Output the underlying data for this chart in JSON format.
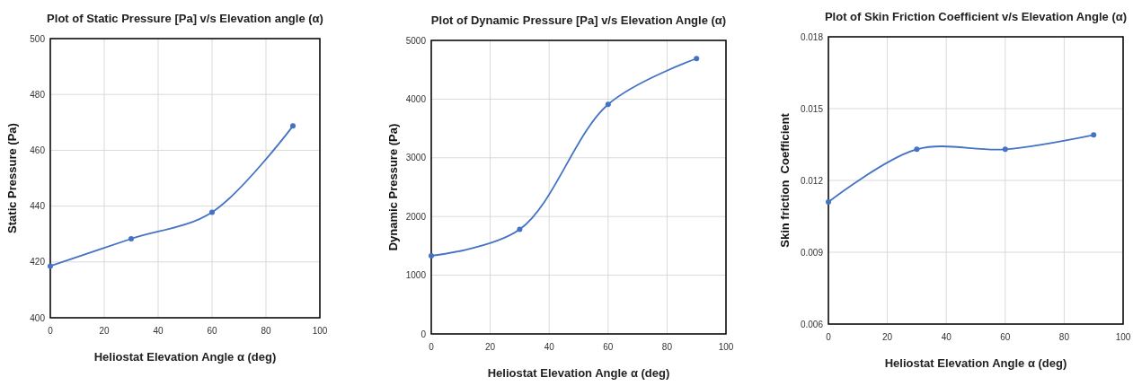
{
  "chart_data": [
    {
      "type": "line",
      "title": "Plot of Static Pressure [Pa] v/s Elevation angle (α)",
      "xlabel": "Heliostat Elevation Angle α (deg)",
      "ylabel": "Static Pressure (Pa)",
      "x": [
        0,
        30,
        60,
        90
      ],
      "series": [
        {
          "color": "#4472c4",
          "values": [
            418.5,
            428.3,
            437.8,
            468.7
          ]
        }
      ],
      "xlim": [
        0,
        100
      ],
      "xticks": [
        0,
        20,
        40,
        60,
        80,
        100
      ],
      "ylim": [
        400,
        500
      ],
      "yticks": [
        400,
        420,
        440,
        460,
        480,
        500
      ],
      "grid": true,
      "marker": "circle"
    },
    {
      "type": "line",
      "title": "Plot of Dynamic Pressure [Pa] v/s Elevation Angle (α)",
      "xlabel": "Heliostat Elevation Angle α (deg)",
      "ylabel": "Dynamic Pressure (Pa)",
      "x": [
        0,
        30,
        60,
        90
      ],
      "series": [
        {
          "color": "#4472c4",
          "values": [
            1330,
            1780,
            3910,
            4690
          ]
        }
      ],
      "xlim": [
        0,
        100
      ],
      "xticks": [
        0,
        20,
        40,
        60,
        80,
        100
      ],
      "ylim": [
        0,
        5000
      ],
      "yticks": [
        0,
        1000,
        2000,
        3000,
        4000,
        5000
      ],
      "grid": true,
      "marker": "circle"
    },
    {
      "type": "line",
      "title": "Plot of Skin Friction Coefficient v/s Elevation Angle (α)",
      "xlabel": "Heliostat Elevation Angle α (deg)",
      "ylabel": "Skin friction  Coefficient",
      "x": [
        0,
        30,
        60,
        90
      ],
      "series": [
        {
          "color": "#4472c4",
          "values": [
            0.0111,
            0.0133,
            0.0133,
            0.0139
          ]
        }
      ],
      "xlim": [
        0,
        100
      ],
      "xticks": [
        0,
        20,
        40,
        60,
        80,
        100
      ],
      "ylim": [
        0.006,
        0.018
      ],
      "yticks": [
        {
          "value": 0.006,
          "label": "0.006"
        },
        {
          "value": 0.009,
          "label": "0.009"
        },
        {
          "value": 0.012,
          "label": "0.012"
        },
        {
          "value": 0.015,
          "label": "0.015"
        },
        {
          "value": 0.018,
          "label": "0.018"
        }
      ],
      "grid": true,
      "marker": "circle"
    }
  ]
}
